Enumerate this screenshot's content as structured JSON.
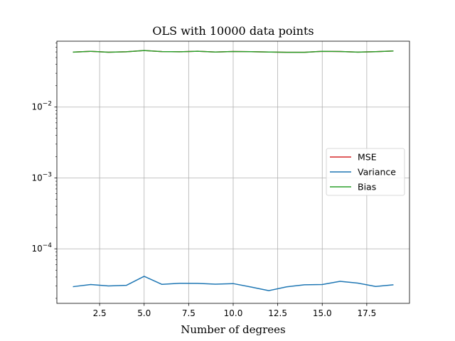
{
  "chart_data": {
    "type": "line",
    "title": "OLS with 10000 data points",
    "xlabel": "Number of degrees",
    "ylabel": "",
    "yscale": "log",
    "grid": true,
    "legend_position": "center-right",
    "xlim": [
      0.1,
      19.9
    ],
    "ylim": [
      1.7e-05,
      0.085
    ],
    "x_ticks": [
      2.5,
      5.0,
      7.5,
      10.0,
      12.5,
      15.0,
      17.5
    ],
    "x_tick_labels": [
      "2.5",
      "5.0",
      "7.5",
      "10.0",
      "12.5",
      "15.0",
      "17.5"
    ],
    "y_ticks": [
      {
        "value": 0.01,
        "base": "10",
        "exp": "−2"
      },
      {
        "value": 0.001,
        "base": "10",
        "exp": "−3"
      },
      {
        "value": 0.0001,
        "base": "10",
        "exp": "−4"
      }
    ],
    "x": [
      1,
      2,
      3,
      4,
      5,
      6,
      7,
      8,
      9,
      10,
      11,
      12,
      13,
      14,
      15,
      16,
      17,
      18,
      19
    ],
    "series": [
      {
        "name": "MSE",
        "color": "#d62728",
        "values": [
          0.0596,
          0.0612,
          0.0594,
          0.0603,
          0.0627,
          0.0607,
          0.0603,
          0.0614,
          0.0597,
          0.0609,
          0.0605,
          0.0598,
          0.0593,
          0.0593,
          0.0611,
          0.0609,
          0.0596,
          0.0605,
          0.0619
        ]
      },
      {
        "name": "Variance",
        "color": "#1f77b4",
        "values": [
          2.92e-05,
          3.13e-05,
          2.99e-05,
          3.05e-05,
          4.09e-05,
          3.15e-05,
          3.26e-05,
          3.25e-05,
          3.17e-05,
          3.23e-05,
          2.89e-05,
          2.57e-05,
          2.91e-05,
          3.11e-05,
          3.13e-05,
          3.48e-05,
          3.28e-05,
          2.94e-05,
          3.11e-05
        ]
      },
      {
        "name": "Bias",
        "color": "#2ca02c",
        "values": [
          0.0596,
          0.0612,
          0.0594,
          0.0603,
          0.0627,
          0.0607,
          0.0603,
          0.0614,
          0.0597,
          0.0609,
          0.0605,
          0.0598,
          0.0593,
          0.0593,
          0.0611,
          0.0609,
          0.0596,
          0.0605,
          0.0619
        ]
      }
    ]
  }
}
